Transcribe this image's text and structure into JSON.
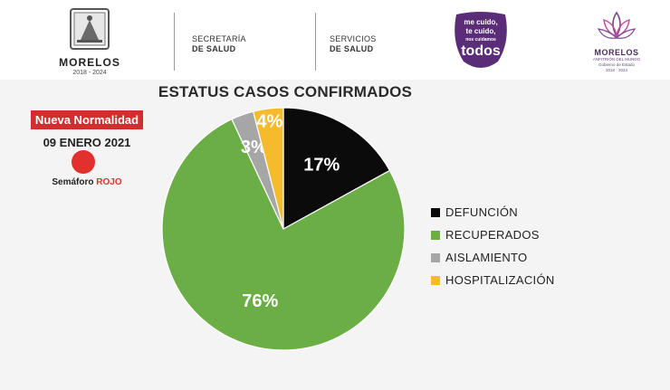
{
  "header": {
    "state_logo": {
      "name": "MORELOS",
      "years": "2018 - 2024"
    },
    "agency_1": {
      "line1": "SECRETARÍA",
      "line2": "DE SALUD"
    },
    "agency_2": {
      "line1": "SERVICIOS",
      "line2": "DE SALUD"
    },
    "campaign": {
      "line1": "me cuido,",
      "line2": "te cuido,",
      "line3": "nos cuidamos",
      "line4": "todos"
    },
    "morelos_logo": {
      "name": "MORELOS",
      "tagline": "ANFITRIÓN DEL MUNDO",
      "line2": "Gobierno de Estado",
      "line3": "2018 · 2024"
    }
  },
  "side_panel": {
    "badge": "Nueva Normalidad",
    "date": "09 ENERO 2021",
    "semaforo_label": "Semáforo",
    "semaforo_value": "ROJO",
    "semaforo_color": "#e2302c"
  },
  "chart_data": {
    "type": "pie",
    "title": "ESTATUS CASOS CONFIRMADOS",
    "legend_position": "right",
    "slices": [
      {
        "label": "DEFUNCIÓN",
        "value": 17,
        "display": "17%",
        "color": "#0b0b0b",
        "label_color": "#ffffff"
      },
      {
        "label": "RECUPERADOS",
        "value": 76,
        "display": "76%",
        "color": "#6aae45",
        "label_color": "#ffffff"
      },
      {
        "label": "AISLAMIENTO",
        "value": 3,
        "display": "3%",
        "color": "#a6a6a6",
        "label_color": "#ffffff"
      },
      {
        "label": "HOSPITALIZACIÓN",
        "value": 4,
        "display": "4%",
        "color": "#f6bb2c",
        "label_color": "#ffffff"
      }
    ]
  }
}
